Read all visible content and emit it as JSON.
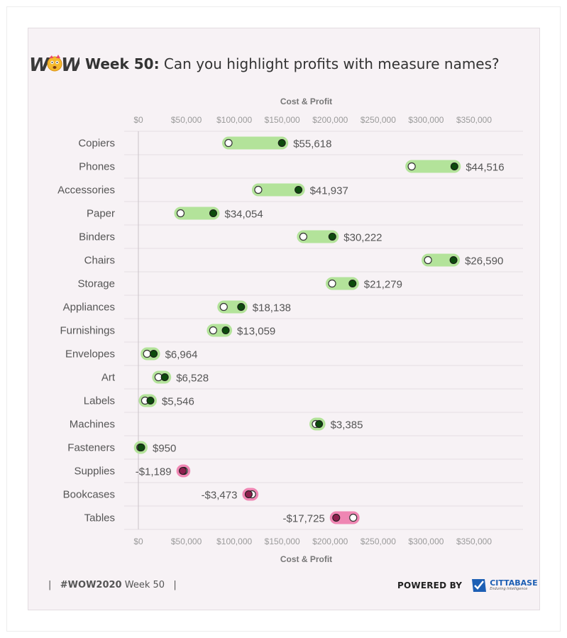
{
  "header": {
    "logo_text": "WOW",
    "title_bold": "Week 50:",
    "title_rest": " Can you highlight profits with measure names?"
  },
  "chart_data": {
    "type": "dumbbell",
    "xlabel": "Cost & Profit",
    "xlim": [
      -10000,
      400000
    ],
    "xticks": [
      0,
      50000,
      100000,
      150000,
      200000,
      250000,
      300000,
      350000
    ],
    "xtick_labels": [
      "$0",
      "$50,000",
      "$100,000",
      "$150,000",
      "$200,000",
      "$250,000",
      "$300,000",
      "$350,000"
    ],
    "grid": true,
    "colors": {
      "positive_bar": "#b3e39a",
      "negative_bar": "#ef86b3",
      "positive_dot": "#0d4a0d",
      "negative_dot": "#8c1f4d",
      "open_dot": "#ffffff"
    },
    "rows": [
      {
        "category": "Copiers",
        "cost": 94000,
        "sales": 149618,
        "profit_label": "$55,618"
      },
      {
        "category": "Phones",
        "cost": 285000,
        "sales": 329516,
        "profit_label": "$44,516"
      },
      {
        "category": "Accessories",
        "cost": 125000,
        "sales": 166937,
        "profit_label": "$41,937"
      },
      {
        "category": "Paper",
        "cost": 44000,
        "sales": 78054,
        "profit_label": "$34,054"
      },
      {
        "category": "Binders",
        "cost": 172000,
        "sales": 202222,
        "profit_label": "$30,222"
      },
      {
        "category": "Chairs",
        "cost": 302000,
        "sales": 328590,
        "profit_label": "$26,590"
      },
      {
        "category": "Storage",
        "cost": 202000,
        "sales": 223279,
        "profit_label": "$21,279"
      },
      {
        "category": "Appliances",
        "cost": 89000,
        "sales": 107138,
        "profit_label": "$18,138"
      },
      {
        "category": "Furnishings",
        "cost": 78000,
        "sales": 91059,
        "profit_label": "$13,059"
      },
      {
        "category": "Envelopes",
        "cost": 9000,
        "sales": 15964,
        "profit_label": "$6,964"
      },
      {
        "category": "Art",
        "cost": 21000,
        "sales": 27528,
        "profit_label": "$6,528"
      },
      {
        "category": "Labels",
        "cost": 7000,
        "sales": 12546,
        "profit_label": "$5,546"
      },
      {
        "category": "Machines",
        "cost": 185000,
        "sales": 188385,
        "profit_label": "$3,385"
      },
      {
        "category": "Fasteners",
        "cost": 2000,
        "sales": 2950,
        "profit_label": "$950"
      },
      {
        "category": "Supplies",
        "cost": 47500,
        "sales": 46311,
        "profit_label": "-$1,189"
      },
      {
        "category": "Bookcases",
        "cost": 118500,
        "sales": 115027,
        "profit_label": "-$3,473"
      },
      {
        "category": "Tables",
        "cost": 224000,
        "sales": 206275,
        "profit_label": "-$17,725"
      }
    ]
  },
  "footer": {
    "hashtag": "#WOW2020",
    "week": "Week 50",
    "powered_by": "POWERED BY",
    "brand_prefix": "CITTA",
    "brand_suffix": "BASE",
    "brand_tagline": "Enduring Intelligence"
  }
}
